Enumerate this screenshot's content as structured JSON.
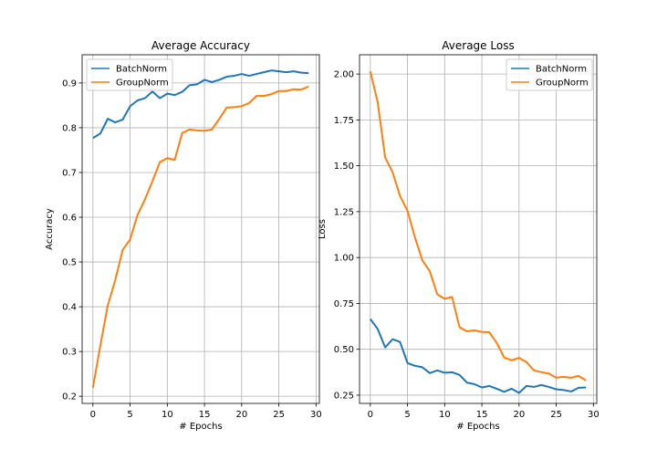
{
  "chart_data": [
    {
      "type": "line",
      "title": "Average Accuracy",
      "xlabel": "# Epochs",
      "ylabel": "Accuracy",
      "xlim": [
        -1.45,
        30.45
      ],
      "ylim": [
        0.184,
        0.963
      ],
      "xticks": [
        0,
        5,
        10,
        15,
        20,
        25,
        30
      ],
      "yticks": [
        0.2,
        0.3,
        0.4,
        0.5,
        0.6,
        0.7,
        0.8,
        0.9
      ],
      "ytick_labels": [
        "0.2",
        "0.3",
        "0.4",
        "0.5",
        "0.6",
        "0.7",
        "0.8",
        "0.9"
      ],
      "grid": true,
      "legend_position": "top-left",
      "x": [
        0,
        1,
        2,
        3,
        4,
        5,
        6,
        7,
        8,
        9,
        10,
        11,
        12,
        13,
        14,
        15,
        16,
        17,
        18,
        19,
        20,
        21,
        22,
        23,
        24,
        25,
        26,
        27,
        28,
        29
      ],
      "series": [
        {
          "name": "BatchNorm",
          "color": "#1f77b4",
          "values": [
            0.777,
            0.787,
            0.82,
            0.812,
            0.818,
            0.848,
            0.861,
            0.866,
            0.881,
            0.866,
            0.876,
            0.873,
            0.88,
            0.895,
            0.897,
            0.907,
            0.902,
            0.907,
            0.914,
            0.916,
            0.92,
            0.916,
            0.92,
            0.924,
            0.928,
            0.926,
            0.924,
            0.926,
            0.923,
            0.922
          ]
        },
        {
          "name": "GroupNorm",
          "color": "#ff7f0e",
          "values": [
            0.219,
            0.313,
            0.403,
            0.459,
            0.527,
            0.55,
            0.605,
            0.64,
            0.68,
            0.723,
            0.732,
            0.728,
            0.788,
            0.796,
            0.794,
            0.793,
            0.796,
            0.82,
            0.845,
            0.846,
            0.848,
            0.855,
            0.871,
            0.871,
            0.875,
            0.882,
            0.882,
            0.886,
            0.885,
            0.892
          ]
        }
      ]
    },
    {
      "type": "line",
      "title": "Average Loss",
      "xlabel": "# Epochs",
      "ylabel": "Loss",
      "xlim": [
        -1.45,
        30.45
      ],
      "ylim": [
        0.205,
        2.105
      ],
      "xticks": [
        0,
        5,
        10,
        15,
        20,
        25,
        30
      ],
      "yticks": [
        0.25,
        0.5,
        0.75,
        1.0,
        1.25,
        1.5,
        1.75,
        2.0
      ],
      "ytick_labels": [
        "0.25",
        "0.50",
        "0.75",
        "1.00",
        "1.25",
        "1.50",
        "1.75",
        "2.00"
      ],
      "grid": true,
      "legend_position": "top-right",
      "x": [
        0,
        1,
        2,
        3,
        4,
        5,
        6,
        7,
        8,
        9,
        10,
        11,
        12,
        13,
        14,
        15,
        16,
        17,
        18,
        19,
        20,
        21,
        22,
        23,
        24,
        25,
        26,
        27,
        28,
        29
      ],
      "series": [
        {
          "name": "BatchNorm",
          "color": "#1f77b4",
          "values": [
            0.665,
            0.61,
            0.51,
            0.555,
            0.54,
            0.425,
            0.41,
            0.402,
            0.37,
            0.385,
            0.372,
            0.375,
            0.36,
            0.318,
            0.31,
            0.292,
            0.3,
            0.285,
            0.268,
            0.285,
            0.262,
            0.3,
            0.295,
            0.305,
            0.295,
            0.282,
            0.278,
            0.27,
            0.29,
            0.292
          ]
        },
        {
          "name": "GroupNorm",
          "color": "#ff7f0e",
          "values": [
            2.015,
            1.845,
            1.545,
            1.465,
            1.335,
            1.255,
            1.11,
            0.985,
            0.925,
            0.8,
            0.775,
            0.785,
            0.62,
            0.598,
            0.603,
            0.595,
            0.593,
            0.535,
            0.455,
            0.44,
            0.453,
            0.43,
            0.385,
            0.375,
            0.368,
            0.345,
            0.35,
            0.345,
            0.355,
            0.33
          ]
        }
      ]
    }
  ]
}
